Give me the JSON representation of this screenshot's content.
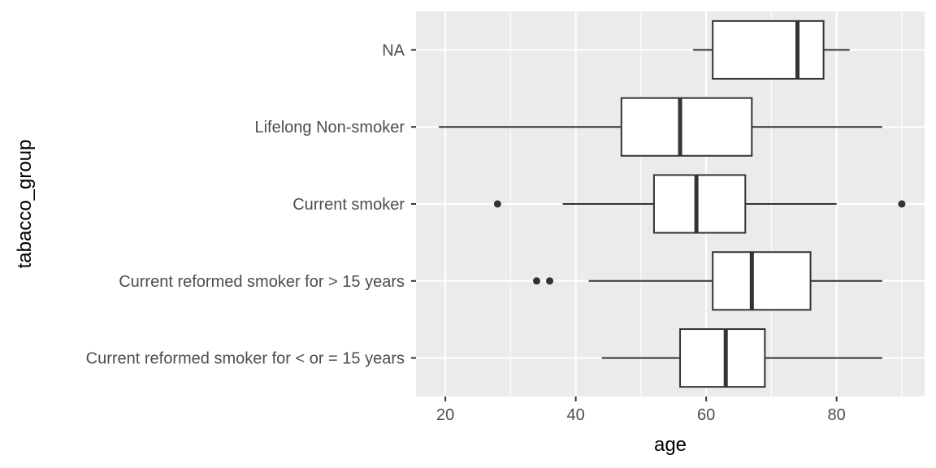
{
  "chart_data": {
    "type": "boxplot",
    "orientation": "horizontal",
    "xlabel": "age",
    "ylabel": "tabacco_group",
    "xlim": [
      15.5,
      93.5
    ],
    "x_ticks": [
      20,
      40,
      60,
      80
    ],
    "x_tick_labels": [
      "20",
      "40",
      "60",
      "80"
    ],
    "grid": true,
    "colors": {
      "panel_background": "#ebebeb",
      "grid_major": "#ffffff",
      "box_fill": "#ffffff",
      "box_line": "#333333",
      "tick_text": "#4d4d4d",
      "axis_title": "#000000"
    },
    "categories": [
      "Current reformed smoker for < or = 15 years",
      "Current reformed smoker for > 15 years",
      "Current smoker",
      "Lifelong Non-smoker",
      "NA"
    ],
    "series": [
      {
        "category": "Current reformed smoker for < or = 15 years",
        "whisker_low": 44,
        "q1": 56,
        "median": 63,
        "q3": 69,
        "whisker_high": 87,
        "outliers": []
      },
      {
        "category": "Current reformed smoker for > 15 years",
        "whisker_low": 42,
        "q1": 61,
        "median": 67,
        "q3": 76,
        "whisker_high": 87,
        "outliers": [
          34,
          36
        ]
      },
      {
        "category": "Current smoker",
        "whisker_low": 38,
        "q1": 52,
        "median": 58.5,
        "q3": 66,
        "whisker_high": 80,
        "outliers": [
          28,
          90
        ]
      },
      {
        "category": "Lifelong Non-smoker",
        "whisker_low": 19,
        "q1": 47,
        "median": 56,
        "q3": 67,
        "whisker_high": 87,
        "outliers": []
      },
      {
        "category": "NA",
        "whisker_low": 58,
        "q1": 61,
        "median": 74,
        "q3": 78,
        "whisker_high": 82,
        "outliers": []
      }
    ]
  }
}
